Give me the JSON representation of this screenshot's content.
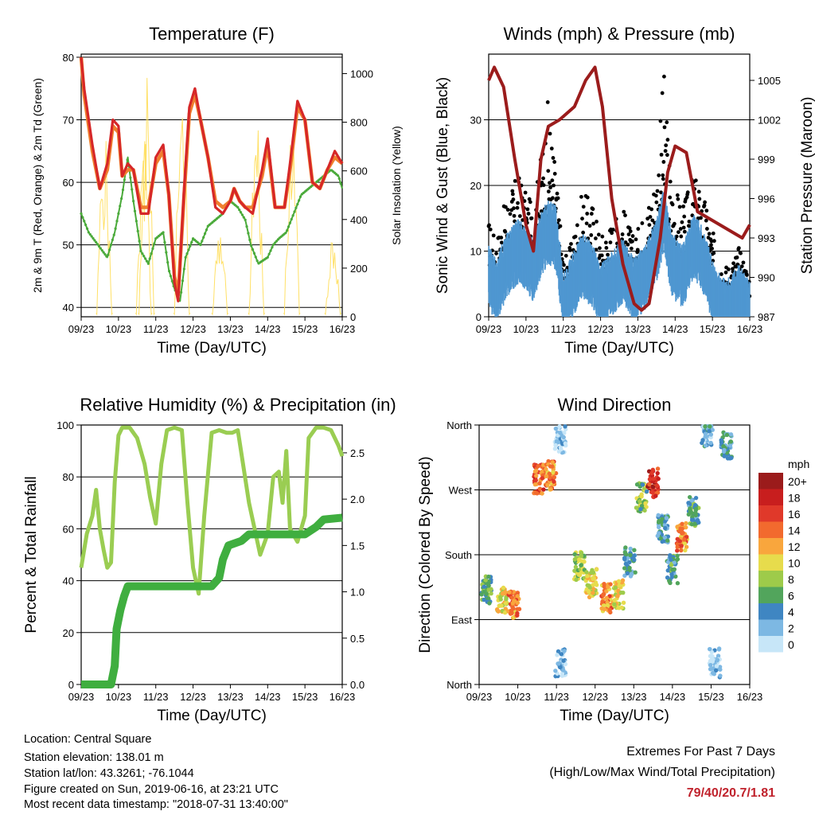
{
  "colors": {
    "temp2m": "#d62728",
    "temp9m": "#f07f2e",
    "dewpoint": "#4aaa3a",
    "solar": "#ffe066",
    "sonic": "#4f97d1",
    "gust": "#000000",
    "pressure": "#9b1c1c",
    "rh": "#9acd52",
    "rain": "#3fae3f"
  },
  "wind_legend": {
    "title": "mph",
    "items": [
      {
        "label": "20+",
        "color": "#9b1b1b"
      },
      {
        "label": "18",
        "color": "#c81e1e"
      },
      {
        "label": "16",
        "color": "#e0392a"
      },
      {
        "label": "14",
        "color": "#f26a2e"
      },
      {
        "label": "12",
        "color": "#f9a63d"
      },
      {
        "label": "10",
        "color": "#e7dc4c"
      },
      {
        "label": "8",
        "color": "#9ecb4a"
      },
      {
        "label": "6",
        "color": "#52a55c"
      },
      {
        "label": "4",
        "color": "#3f86c2"
      },
      {
        "label": "2",
        "color": "#7db8e3"
      },
      {
        "label": "0",
        "color": "#c7e6f8"
      }
    ]
  },
  "chart_data": [
    {
      "type": "line",
      "title": "Temperature (F)",
      "xlabel": "Time (Day/UTC)",
      "ylabel": "2m & 9m T (Red, Orange) & 2m Td (Green)",
      "ylabel_right": "Solar Insolation (Yellow)",
      "xticks": [
        "09/23",
        "10/23",
        "11/23",
        "12/23",
        "13/23",
        "14/23",
        "15/23",
        "16/23"
      ],
      "ylim": [
        38.5,
        80.5
      ],
      "yticks": [
        40,
        50,
        60,
        70,
        80
      ],
      "ylim_right": [
        0,
        1080
      ],
      "yticks_right": [
        0,
        200,
        400,
        600,
        800,
        1000
      ],
      "grid": true,
      "series": [
        {
          "key": "temp2m",
          "x": [
            0,
            0.08,
            0.3,
            0.5,
            0.7,
            0.85,
            1,
            1.1,
            1.25,
            1.4,
            1.6,
            1.8,
            2.0,
            2.2,
            2.35,
            2.5,
            2.6,
            2.75,
            2.9,
            3.05,
            3.2,
            3.4,
            3.6,
            3.8,
            4,
            4.1,
            4.25,
            4.4,
            4.6,
            4.85,
            5,
            5.2,
            5.45,
            5.6,
            5.8,
            6,
            6.2,
            6.4,
            6.6,
            6.8,
            7
          ],
          "y": [
            80,
            75,
            66,
            59,
            63,
            70,
            69,
            61,
            63,
            62,
            55,
            55,
            64,
            66,
            58,
            44,
            41,
            58,
            72,
            75,
            70,
            64,
            56,
            55,
            57,
            59,
            57,
            56,
            55,
            62,
            67,
            56,
            56,
            63,
            73,
            70,
            60,
            59,
            62,
            65,
            63
          ]
        },
        {
          "key": "temp9m",
          "x": [
            0,
            0.08,
            0.3,
            0.5,
            0.7,
            0.85,
            1,
            1.1,
            1.25,
            1.4,
            1.6,
            1.8,
            2.0,
            2.2,
            2.35,
            2.5,
            2.6,
            2.75,
            2.9,
            3.05,
            3.2,
            3.4,
            3.6,
            3.8,
            4,
            4.1,
            4.25,
            4.4,
            4.6,
            4.85,
            5,
            5.2,
            5.45,
            5.6,
            5.8,
            6,
            6.2,
            6.4,
            6.6,
            6.8,
            7
          ],
          "y": [
            80,
            74,
            65,
            59,
            62,
            69,
            68,
            61,
            62,
            62,
            56,
            56,
            63,
            65,
            58,
            45,
            42,
            57,
            71,
            74,
            70,
            64,
            57,
            56,
            57,
            59,
            57,
            56,
            56,
            61,
            66,
            56,
            56,
            62,
            72,
            70,
            60,
            59,
            62,
            64,
            63
          ]
        },
        {
          "key": "dewpoint",
          "x": [
            0,
            0.2,
            0.45,
            0.7,
            0.9,
            1.1,
            1.25,
            1.4,
            1.6,
            1.8,
            2.0,
            2.2,
            2.35,
            2.5,
            2.65,
            2.8,
            3.0,
            3.2,
            3.4,
            3.6,
            3.8,
            4,
            4.2,
            4.4,
            4.55,
            4.75,
            5,
            5.15,
            5.3,
            5.5,
            5.7,
            5.9,
            6.1,
            6.3,
            6.5,
            6.7,
            6.9,
            7
          ],
          "y": [
            55,
            52,
            50,
            48,
            52,
            58,
            64,
            57,
            49,
            47,
            51,
            52,
            46,
            43,
            41,
            48,
            51,
            50,
            53,
            54,
            55,
            57,
            56,
            54,
            50,
            47,
            48,
            50,
            51,
            52,
            55,
            58,
            59,
            60,
            61,
            62,
            61,
            59
          ]
        }
      ],
      "solar": {
        "peaks": [
          {
            "x": 0.62,
            "y": 780
          },
          {
            "x": 1.68,
            "y": 860
          },
          {
            "x": 1.75,
            "y": 1060
          },
          {
            "x": 2.7,
            "y": 960
          },
          {
            "x": 3.72,
            "y": 420
          },
          {
            "x": 4.7,
            "y": 820
          },
          {
            "x": 5.65,
            "y": 870
          },
          {
            "x": 6.75,
            "y": 360
          }
        ]
      }
    },
    {
      "type": "line",
      "title": "Winds (mph) & Pressure (mb)",
      "xlabel": "Time (Day/UTC)",
      "ylabel": "Sonic Wind & Gust (Blue, Black)",
      "ylabel_right": "Station Pressure (Maroon)",
      "xticks": [
        "09/23",
        "10/23",
        "11/23",
        "12/23",
        "13/23",
        "14/23",
        "15/23",
        "16/23"
      ],
      "ylim": [
        0,
        40
      ],
      "yticks": [
        0,
        10,
        20,
        30
      ],
      "ylim_right": [
        987,
        1007
      ],
      "yticks_right": [
        987,
        990,
        993,
        996,
        999,
        1002,
        1005
      ],
      "grid": true,
      "pressure": {
        "x": [
          0,
          0.15,
          0.4,
          0.7,
          1.0,
          1.2,
          1.4,
          1.6,
          1.9,
          2.3,
          2.6,
          2.85,
          3.05,
          3.3,
          3.6,
          3.9,
          4.1,
          4.3,
          4.6,
          4.8,
          5.0,
          5.3,
          5.6,
          5.9,
          6.2,
          6.5,
          6.8,
          7
        ],
        "y": [
          1005,
          1006,
          1004.5,
          999,
          994,
          992,
          999,
          1001.5,
          1002,
          1003,
          1005,
          1006,
          1003,
          996,
          991,
          988,
          987.5,
          988,
          993,
          998,
          1000,
          999.5,
          995,
          994.5,
          994,
          993.5,
          993,
          994
        ]
      },
      "wind_mean": {
        "x": [
          0,
          0.2,
          0.5,
          0.8,
          1,
          1.2,
          1.4,
          1.6,
          1.8,
          2.0,
          2.2,
          2.5,
          2.8,
          3.0,
          3.3,
          3.6,
          3.9,
          4.2,
          4.5,
          4.7,
          4.9,
          5.2,
          5.5,
          5.8,
          6.1,
          6.4,
          6.7,
          7
        ],
        "y": [
          8,
          6,
          10,
          12,
          11,
          9,
          13,
          15,
          14,
          4,
          6,
          10,
          8,
          5,
          7,
          9,
          6,
          8,
          12,
          17,
          10,
          8,
          13,
          10,
          4,
          3,
          5,
          3
        ]
      },
      "gust_max": {
        "x": [
          0,
          0.2,
          0.5,
          0.8,
          1,
          1.2,
          1.4,
          1.6,
          1.8,
          2.0,
          2.2,
          2.5,
          2.8,
          3.0,
          3.3,
          3.6,
          3.9,
          4.2,
          4.5,
          4.7,
          4.9,
          5.2,
          5.5,
          5.8,
          6.1,
          6.4,
          6.7,
          7
        ],
        "y": [
          15,
          12,
          19,
          22,
          19,
          17,
          25,
          34,
          23,
          9,
          11,
          19,
          18,
          13,
          15,
          17,
          12,
          17,
          23,
          38,
          22,
          17,
          22,
          18,
          11,
          8,
          11,
          7
        ]
      }
    },
    {
      "type": "line",
      "title": "Relative Humidity (%) & Precipitation (in)",
      "xlabel": "Time (Day/UTC)",
      "ylabel": "Percent & Total Rainfall",
      "xticks": [
        "09/23",
        "10/23",
        "11/23",
        "12/23",
        "13/23",
        "14/23",
        "15/23",
        "16/23"
      ],
      "ylim": [
        0,
        100
      ],
      "yticks": [
        0,
        20,
        40,
        60,
        80,
        100
      ],
      "ylim_right": [
        0,
        2.8
      ],
      "yticks_right": [
        0,
        0.5,
        1.0,
        1.5,
        2.0,
        2.5
      ],
      "yticks_right_labels": [
        "0.0",
        "0.5",
        "1.0",
        "1.5",
        "2.0",
        "2.5"
      ],
      "grid": true,
      "rh": {
        "x": [
          0,
          0.15,
          0.3,
          0.4,
          0.5,
          0.6,
          0.7,
          0.8,
          0.9,
          1.0,
          1.1,
          1.3,
          1.5,
          1.7,
          1.85,
          2.0,
          2.15,
          2.3,
          2.5,
          2.7,
          2.85,
          3.0,
          3.15,
          3.3,
          3.5,
          3.7,
          3.9,
          4.05,
          4.2,
          4.5,
          4.8,
          5.0,
          5.15,
          5.3,
          5.4,
          5.5,
          5.6,
          5.8,
          6.0,
          6.1,
          6.3,
          6.5,
          6.7,
          6.9,
          7
        ],
        "y": [
          45,
          58,
          65,
          75,
          60,
          52,
          45,
          47,
          78,
          96,
          99,
          99,
          95,
          85,
          72,
          62,
          85,
          98,
          99,
          98,
          70,
          45,
          35,
          65,
          97,
          98,
          97,
          97,
          98,
          70,
          50,
          58,
          80,
          82,
          70,
          90,
          60,
          55,
          65,
          95,
          99,
          99,
          98,
          92,
          88
        ]
      },
      "rain": {
        "x": [
          0,
          0.8,
          0.9,
          0.95,
          1.05,
          1.15,
          1.25,
          1.5,
          2.0,
          2.5,
          3.0,
          3.5,
          3.7,
          3.8,
          3.95,
          4.3,
          4.5,
          4.6,
          5.0,
          5.5,
          6.0,
          6.3,
          6.5,
          7
        ],
        "y": [
          0,
          0,
          0.2,
          0.6,
          0.8,
          0.95,
          1.06,
          1.06,
          1.06,
          1.06,
          1.06,
          1.06,
          1.15,
          1.35,
          1.5,
          1.55,
          1.62,
          1.62,
          1.62,
          1.62,
          1.62,
          1.7,
          1.78,
          1.8
        ]
      }
    },
    {
      "type": "scatter",
      "title": "Wind Direction",
      "xlabel": "Time (Day/UTC)",
      "ylabel": "Direction (Colored By Speed)",
      "xticks": [
        "09/23",
        "10/23",
        "11/23",
        "12/23",
        "13/23",
        "14/23",
        "15/23",
        "16/23"
      ],
      "ylim": [
        0,
        360
      ],
      "yticks": [
        0,
        90,
        180,
        270,
        360
      ],
      "yticks_labels": [
        "North",
        "East",
        "South",
        "West",
        "North"
      ],
      "grid": true,
      "clusters": [
        {
          "x": 0.2,
          "dir": 130,
          "spd": 6
        },
        {
          "x": 0.6,
          "dir": 115,
          "spd": 10
        },
        {
          "x": 0.9,
          "dir": 110,
          "spd": 13
        },
        {
          "x": 1.55,
          "dir": 285,
          "spd": 15
        },
        {
          "x": 1.85,
          "dir": 290,
          "spd": 13
        },
        {
          "x": 2.1,
          "dir": 340,
          "spd": 1
        },
        {
          "x": 2.1,
          "dir": 30,
          "spd": 2
        },
        {
          "x": 2.6,
          "dir": 165,
          "spd": 8
        },
        {
          "x": 2.9,
          "dir": 140,
          "spd": 10
        },
        {
          "x": 3.3,
          "dir": 120,
          "spd": 13
        },
        {
          "x": 3.6,
          "dir": 125,
          "spd": 10
        },
        {
          "x": 3.9,
          "dir": 170,
          "spd": 4
        },
        {
          "x": 4.2,
          "dir": 260,
          "spd": 7
        },
        {
          "x": 4.5,
          "dir": 280,
          "spd": 17
        },
        {
          "x": 4.75,
          "dir": 215,
          "spd": 4
        },
        {
          "x": 5.0,
          "dir": 160,
          "spd": 5
        },
        {
          "x": 5.25,
          "dir": 205,
          "spd": 13
        },
        {
          "x": 5.55,
          "dir": 240,
          "spd": 5
        },
        {
          "x": 5.9,
          "dir": 350,
          "spd": 3
        },
        {
          "x": 6.1,
          "dir": 30,
          "spd": 1
        },
        {
          "x": 6.4,
          "dir": 330,
          "spd": 4
        }
      ]
    }
  ],
  "info": {
    "location": "Location: Central Square",
    "elevation": "Station elevation: 138.01 m",
    "latlon": "Station lat/lon: 43.3261; -76.1044",
    "created": "Figure created on Sun, 2019-06-16, at 23:21 UTC",
    "recent": "Most recent data timestamp: \"2018-07-31 13:40:00\""
  },
  "extremes": {
    "title": "Extremes For Past 7 Days",
    "subtitle": "(High/Low/Max Wind/Total Precipitation)",
    "values": "79/40/20.7/1.81"
  }
}
